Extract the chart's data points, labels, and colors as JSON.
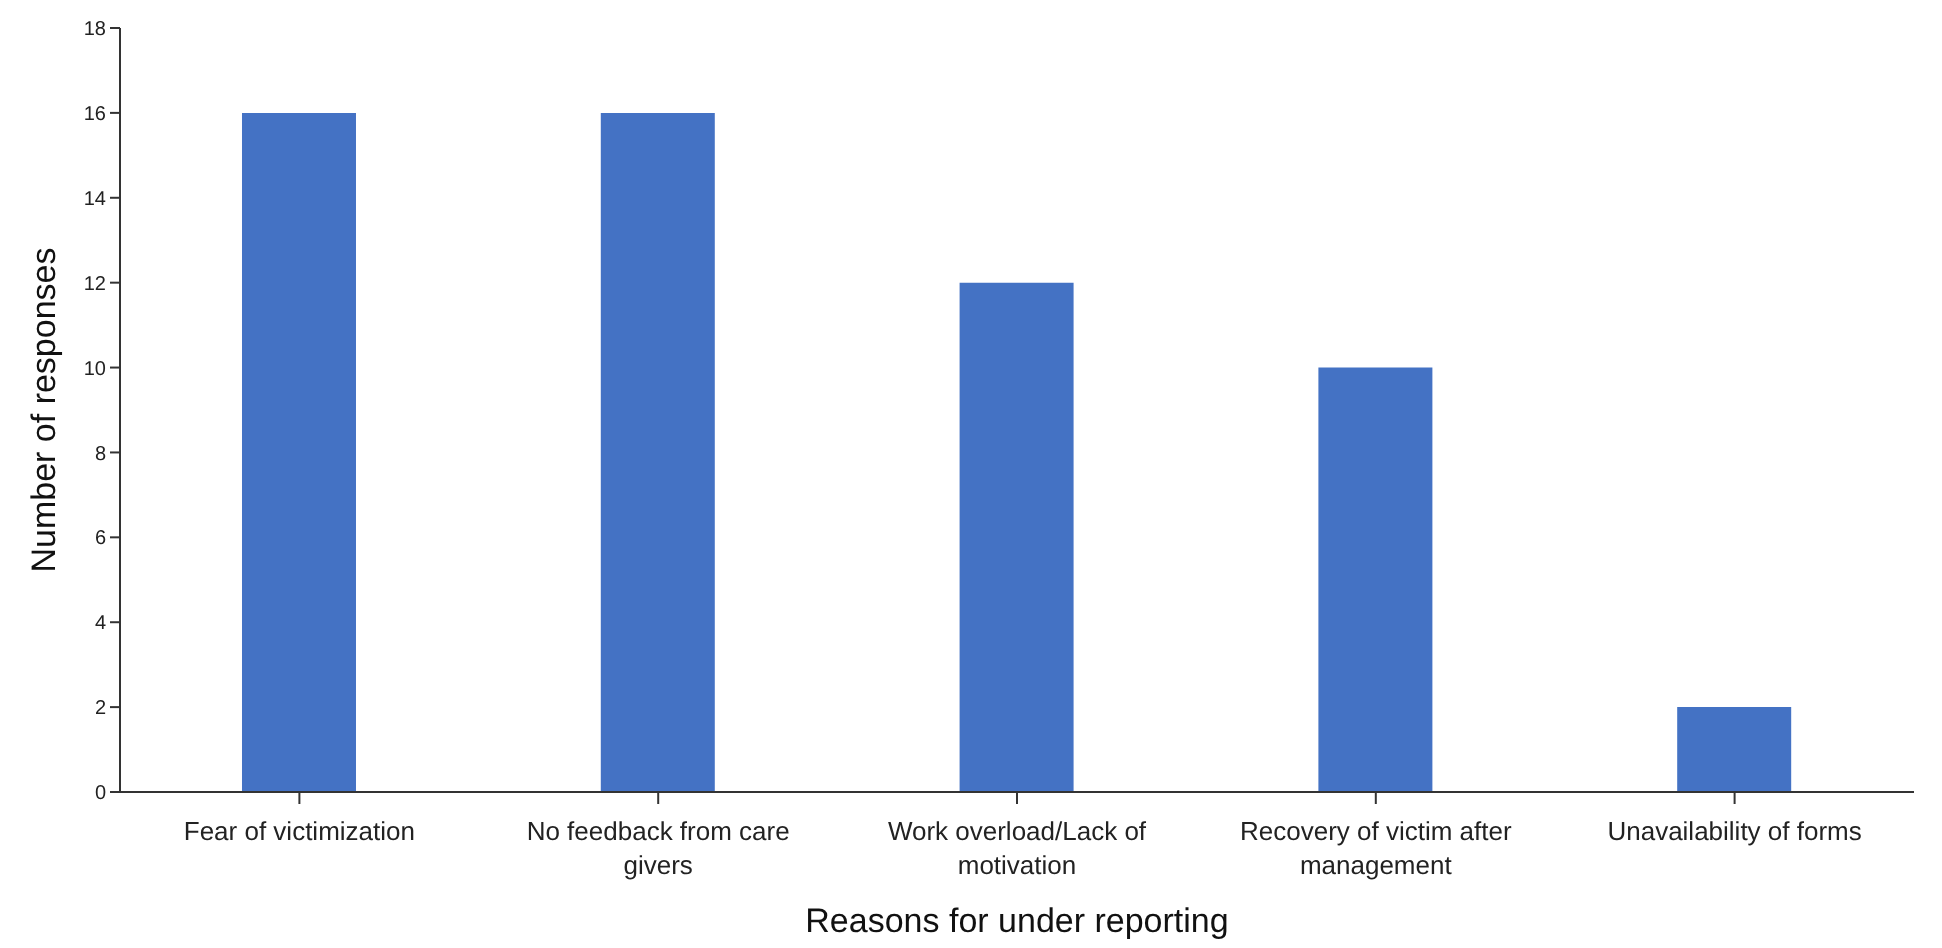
{
  "chart_data": {
    "type": "bar",
    "xlabel": "Reasons for under reporting",
    "ylabel": "Number of responses",
    "categories": [
      "Fear of victimization",
      "No feedback from care givers",
      "Work overload/Lack of motivation",
      "Recovery of victim after management",
      "Unavailability of forms"
    ],
    "values": [
      16,
      16,
      12,
      10,
      2
    ],
    "color": "#4472c4",
    "ylim": [
      0,
      18
    ],
    "yticks": [
      0,
      2,
      4,
      6,
      8,
      10,
      12,
      14,
      16,
      18
    ],
    "grid": false,
    "legend": false
  }
}
